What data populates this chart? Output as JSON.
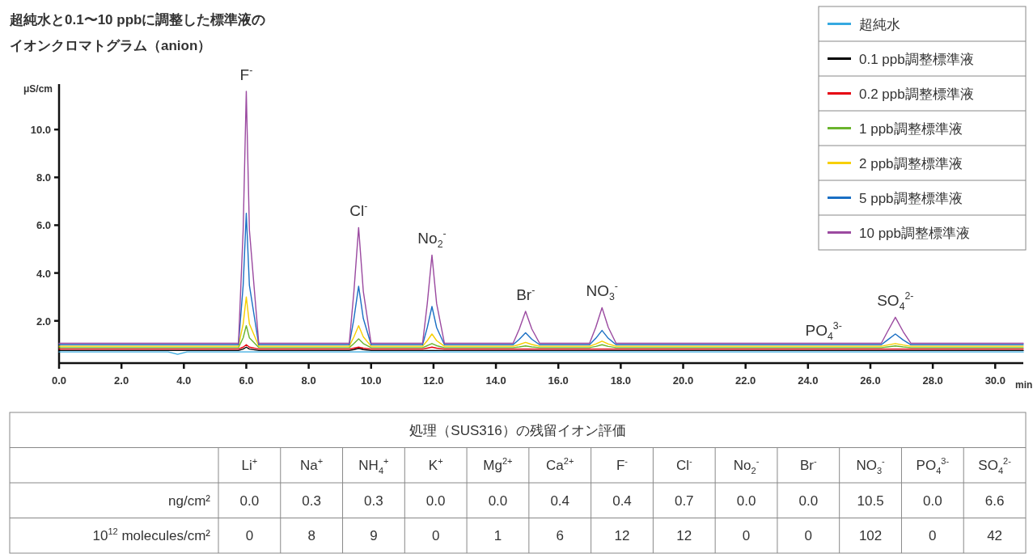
{
  "chart_data": [
    {
      "type": "line",
      "title": "超純水と0.1〜10 ppbに調整した標準液の",
      "subtitle": "イオンクロマトグラム（anion）",
      "xlabel": "min",
      "ylabel": "μS/cm",
      "x": [
        0,
        3.5,
        3.8,
        4.1,
        5.75,
        5.9,
        6.0,
        6.1,
        6.4,
        9.3,
        9.45,
        9.6,
        9.75,
        10.0,
        11.65,
        11.8,
        11.95,
        12.1,
        12.35,
        14.55,
        14.75,
        14.95,
        15.15,
        15.4,
        17.0,
        17.2,
        17.4,
        17.6,
        17.85,
        26.35,
        26.55,
        26.8,
        27.05,
        27.3,
        30.9
      ],
      "series": [
        {
          "name": "超純水",
          "color": "#36a9e1",
          "values": [
            0.7,
            0.7,
            0.6,
            0.7,
            0.7,
            0.7,
            0.7,
            0.7,
            0.7,
            0.7,
            0.7,
            0.7,
            0.7,
            0.7,
            0.7,
            0.7,
            0.7,
            0.7,
            0.7,
            0.7,
            0.7,
            0.7,
            0.7,
            0.7,
            0.7,
            0.7,
            0.7,
            0.7,
            0.7,
            0.7,
            0.7,
            0.7,
            0.7,
            0.7,
            0.7
          ]
        },
        {
          "name": "0.1 ppb調整標準液",
          "color": "#000000",
          "values": [
            0.76,
            0.76,
            0.76,
            0.76,
            0.76,
            0.82,
            0.9,
            0.82,
            0.76,
            0.76,
            0.8,
            0.85,
            0.8,
            0.76,
            0.76,
            0.76,
            0.76,
            0.76,
            0.76,
            0.76,
            0.76,
            0.76,
            0.76,
            0.76,
            0.76,
            0.76,
            0.76,
            0.76,
            0.76,
            0.76,
            0.76,
            0.76,
            0.76,
            0.76,
            0.76
          ]
        },
        {
          "name": "0.2 ppb調整標準液",
          "color": "#e60012",
          "values": [
            0.82,
            0.82,
            0.82,
            0.82,
            0.82,
            0.9,
            1.0,
            0.9,
            0.82,
            0.82,
            0.86,
            0.9,
            0.86,
            0.82,
            0.82,
            0.86,
            0.9,
            0.86,
            0.82,
            0.82,
            0.82,
            0.82,
            0.82,
            0.82,
            0.82,
            0.82,
            0.82,
            0.82,
            0.82,
            0.82,
            0.82,
            0.82,
            0.82,
            0.82,
            0.82
          ]
        },
        {
          "name": "1 ppb調整標準液",
          "color": "#6ab42d",
          "values": [
            0.88,
            0.88,
            0.88,
            0.88,
            0.88,
            1.29,
            1.8,
            1.29,
            0.88,
            0.88,
            1.05,
            1.25,
            1.05,
            0.88,
            0.88,
            0.96,
            1.05,
            0.96,
            0.88,
            0.88,
            0.91,
            0.95,
            0.91,
            0.88,
            0.88,
            0.93,
            1.0,
            0.93,
            0.88,
            0.88,
            0.91,
            0.95,
            0.91,
            0.88,
            0.88
          ]
        },
        {
          "name": "2 ppb調整標準液",
          "color": "#f7cf00",
          "values": [
            0.94,
            0.94,
            0.94,
            0.94,
            0.94,
            1.87,
            3.0,
            1.87,
            0.94,
            0.94,
            1.33,
            1.8,
            1.33,
            0.94,
            0.94,
            1.17,
            1.45,
            1.17,
            0.94,
            0.94,
            1.01,
            1.1,
            1.01,
            0.94,
            0.94,
            1.03,
            1.15,
            1.03,
            0.94,
            0.94,
            0.99,
            1.05,
            0.99,
            0.94,
            0.94
          ]
        },
        {
          "name": "5 ppb調整標準液",
          "color": "#1a6fc4",
          "values": [
            1.0,
            1.0,
            1.0,
            1.0,
            1.0,
            3.48,
            6.5,
            3.48,
            1.0,
            1.0,
            2.1,
            3.45,
            2.1,
            1.0,
            1.0,
            1.72,
            2.6,
            1.72,
            1.0,
            1.0,
            1.23,
            1.5,
            1.23,
            1.0,
            1.0,
            1.27,
            1.6,
            1.27,
            1.0,
            1.0,
            1.2,
            1.45,
            1.2,
            1.0,
            1.0
          ]
        },
        {
          "name": "10 ppb調整標準液",
          "color": "#9b4aa0",
          "values": [
            1.06,
            1.06,
            1.06,
            1.06,
            1.06,
            5.8,
            11.6,
            5.8,
            1.06,
            1.06,
            3.24,
            5.9,
            3.24,
            1.06,
            1.06,
            2.72,
            4.75,
            2.72,
            1.06,
            1.06,
            1.66,
            2.4,
            1.66,
            1.06,
            1.06,
            1.73,
            2.55,
            1.73,
            1.06,
            1.06,
            1.55,
            2.15,
            1.55,
            1.06,
            1.06
          ]
        }
      ],
      "xlim": [
        0,
        30.9
      ],
      "ylim": [
        0.3,
        11.9
      ],
      "xticks": [
        {
          "value": 0,
          "label": "0.0"
        },
        {
          "value": 2,
          "label": "2.0"
        },
        {
          "value": 4,
          "label": "4.0"
        },
        {
          "value": 6,
          "label": "6.0"
        },
        {
          "value": 8,
          "label": "8.0"
        },
        {
          "value": 10,
          "label": "10.0"
        },
        {
          "value": 12,
          "label": "12.0"
        },
        {
          "value": 14,
          "label": "14.0"
        },
        {
          "value": 16,
          "label": "16.0"
        },
        {
          "value": 18,
          "label": "18.0"
        },
        {
          "value": 20,
          "label": "20.0"
        },
        {
          "value": 22,
          "label": "22.0"
        },
        {
          "value": 24,
          "label": "24.0"
        },
        {
          "value": 26,
          "label": "26.0"
        },
        {
          "value": 28,
          "label": "28.0"
        },
        {
          "value": 30,
          "label": "30.0"
        }
      ],
      "yticks": [
        {
          "value": 2,
          "label": "2.0"
        },
        {
          "value": 4,
          "label": "4.0"
        },
        {
          "value": 6,
          "label": "6.0"
        },
        {
          "value": 8,
          "label": "8.0"
        },
        {
          "value": 10,
          "label": "10.0"
        }
      ],
      "annotations": [
        {
          "text": "F$^{-}$",
          "x": 6.0,
          "y": 11.6
        },
        {
          "text": "Cl$^{-}$",
          "x": 9.6,
          "y": 5.9
        },
        {
          "text": "No$_{2}$$^{-}$",
          "x": 11.95,
          "y": 4.75
        },
        {
          "text": "Br$^{-}$",
          "x": 14.95,
          "y": 2.4
        },
        {
          "text": "NO$_{3}$$^{-}$",
          "x": 17.4,
          "y": 2.55
        },
        {
          "text": "PO$_{4}$$^{3-}$",
          "x": 24.5,
          "y": 0.9
        },
        {
          "text": "SO$_{4}$$^{2-}$",
          "x": 26.8,
          "y": 2.15
        }
      ],
      "legend": "top right",
      "grid": false,
      "marker": "none",
      "line_style": "solid"
    },
    {
      "type": "other",
      "title": "処理（SUS316）の残留イオン評価",
      "categories": [
        "Li$^{+}$",
        "Na$^{+}$",
        "NH$_{4}$$^{+}$",
        "K$^{+}$",
        "Mg$^{2+}$",
        "Ca$^{2+}$",
        "F$^{-}$",
        "Cl$^{-}$",
        "No$_{2}$$^{-}$",
        "Br$^{-}$",
        "NO$_{3}$$^{-}$",
        "PO$_{4}$$^{3-}$",
        "SO$_{4}$$^{2-}$"
      ],
      "series": [
        {
          "name": "ng/cm²",
          "values": [
            0.0,
            0.3,
            0.3,
            0.0,
            0.0,
            0.4,
            0.4,
            0.7,
            0.0,
            0.0,
            10.5,
            0.0,
            6.6
          ],
          "value_labels": [
            "0.0",
            "0.3",
            "0.3",
            "0.0",
            "0.0",
            "0.4",
            "0.4",
            "0.7",
            "0.0",
            "0.0",
            "10.5",
            "0.0",
            "6.6"
          ]
        },
        {
          "name": "10$^{12}$ molecules/cm²",
          "values": [
            0,
            8,
            9,
            0,
            1,
            6,
            12,
            12,
            0,
            0,
            102,
            0,
            42
          ]
        }
      ],
      "data_labels": true
    }
  ]
}
